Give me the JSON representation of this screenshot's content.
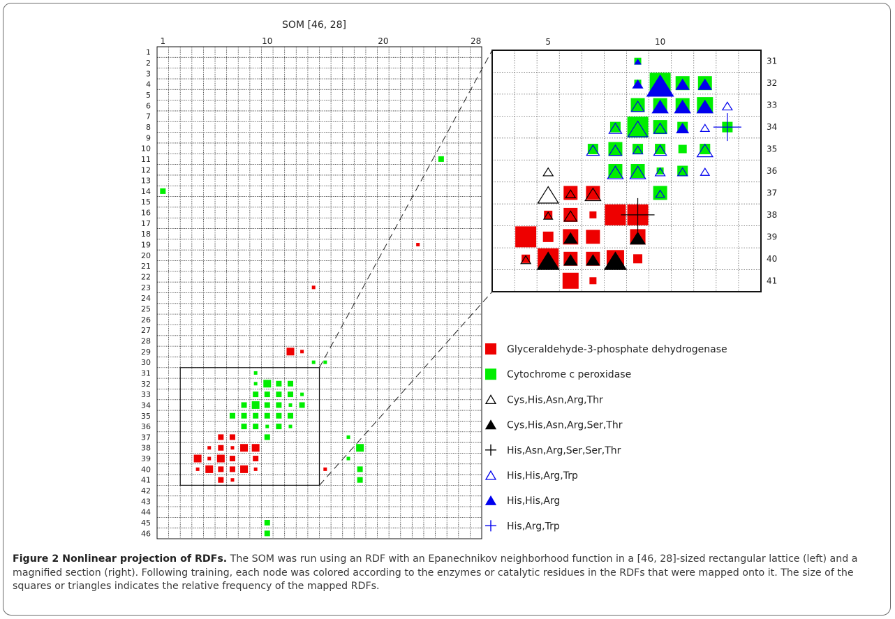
{
  "chart_data": [
    {
      "type": "scatter",
      "title": "SOM [46, 28]",
      "x_ticks": [
        "1",
        "10",
        "20",
        "28"
      ],
      "y_ticks": [
        "1",
        "2",
        "3",
        "4",
        "5",
        "6",
        "7",
        "8",
        "9",
        "10",
        "11",
        "12",
        "13",
        "14",
        "15",
        "16",
        "17",
        "18",
        "19",
        "20",
        "21",
        "22",
        "23",
        "24",
        "25",
        "26",
        "27",
        "28",
        "29",
        "30",
        "31",
        "32",
        "33",
        "34",
        "35",
        "36",
        "37",
        "38",
        "39",
        "40",
        "41",
        "42",
        "43",
        "44",
        "45",
        "46"
      ],
      "xlim": [
        1,
        28
      ],
      "ylim": [
        1,
        46
      ],
      "grid": true,
      "series": [
        {
          "name": "Glyceraldehyde-3-phosphate dehydrogenase",
          "color": "#ee0000",
          "points": [
            {
              "x": 12,
              "y": 29,
              "size": 3
            },
            {
              "x": 13,
              "y": 29,
              "size": 1
            },
            {
              "x": 14,
              "y": 23,
              "size": 1
            },
            {
              "x": 23,
              "y": 19,
              "size": 1
            },
            {
              "x": 6,
              "y": 37,
              "size": 2
            },
            {
              "x": 7,
              "y": 37,
              "size": 2
            },
            {
              "x": 5,
              "y": 38,
              "size": 1
            },
            {
              "x": 6,
              "y": 38,
              "size": 2
            },
            {
              "x": 7,
              "y": 38,
              "size": 1
            },
            {
              "x": 8,
              "y": 38,
              "size": 3
            },
            {
              "x": 9,
              "y": 38,
              "size": 3
            },
            {
              "x": 4,
              "y": 39,
              "size": 3
            },
            {
              "x": 5,
              "y": 39,
              "size": 1
            },
            {
              "x": 6,
              "y": 39,
              "size": 3
            },
            {
              "x": 7,
              "y": 39,
              "size": 2
            },
            {
              "x": 9,
              "y": 39,
              "size": 2
            },
            {
              "x": 4,
              "y": 40,
              "size": 1
            },
            {
              "x": 5,
              "y": 40,
              "size": 3
            },
            {
              "x": 6,
              "y": 40,
              "size": 2
            },
            {
              "x": 7,
              "y": 40,
              "size": 2
            },
            {
              "x": 8,
              "y": 40,
              "size": 3
            },
            {
              "x": 9,
              "y": 40,
              "size": 1
            },
            {
              "x": 15,
              "y": 40,
              "size": 1
            },
            {
              "x": 6,
              "y": 41,
              "size": 2
            },
            {
              "x": 7,
              "y": 41,
              "size": 1
            }
          ]
        },
        {
          "name": "Cytochrome c peroxidase",
          "color": "#00ee00",
          "points": [
            {
              "x": 25,
              "y": 11,
              "size": 2
            },
            {
              "x": 1,
              "y": 14,
              "size": 2
            },
            {
              "x": 14,
              "y": 30,
              "size": 1
            },
            {
              "x": 15,
              "y": 30,
              "size": 1
            },
            {
              "x": 9,
              "y": 31,
              "size": 1
            },
            {
              "x": 9,
              "y": 32,
              "size": 1
            },
            {
              "x": 10,
              "y": 32,
              "size": 3
            },
            {
              "x": 11,
              "y": 32,
              "size": 2
            },
            {
              "x": 12,
              "y": 32,
              "size": 2
            },
            {
              "x": 9,
              "y": 33,
              "size": 2
            },
            {
              "x": 10,
              "y": 33,
              "size": 2
            },
            {
              "x": 11,
              "y": 33,
              "size": 2
            },
            {
              "x": 12,
              "y": 33,
              "size": 2
            },
            {
              "x": 13,
              "y": 33,
              "size": 1
            },
            {
              "x": 8,
              "y": 34,
              "size": 2
            },
            {
              "x": 9,
              "y": 34,
              "size": 3
            },
            {
              "x": 10,
              "y": 34,
              "size": 2
            },
            {
              "x": 11,
              "y": 34,
              "size": 2
            },
            {
              "x": 12,
              "y": 34,
              "size": 1
            },
            {
              "x": 13,
              "y": 34,
              "size": 2
            },
            {
              "x": 7,
              "y": 35,
              "size": 2
            },
            {
              "x": 8,
              "y": 35,
              "size": 2
            },
            {
              "x": 9,
              "y": 35,
              "size": 2
            },
            {
              "x": 10,
              "y": 35,
              "size": 2
            },
            {
              "x": 11,
              "y": 35,
              "size": 2
            },
            {
              "x": 12,
              "y": 35,
              "size": 2
            },
            {
              "x": 8,
              "y": 36,
              "size": 2
            },
            {
              "x": 9,
              "y": 36,
              "size": 2
            },
            {
              "x": 10,
              "y": 36,
              "size": 1
            },
            {
              "x": 11,
              "y": 36,
              "size": 2
            },
            {
              "x": 12,
              "y": 36,
              "size": 1
            },
            {
              "x": 10,
              "y": 37,
              "size": 2
            },
            {
              "x": 17,
              "y": 37,
              "size": 1
            },
            {
              "x": 18,
              "y": 38,
              "size": 3
            },
            {
              "x": 17,
              "y": 39,
              "size": 1
            },
            {
              "x": 18,
              "y": 40,
              "size": 2
            },
            {
              "x": 18,
              "y": 41,
              "size": 2
            },
            {
              "x": 10,
              "y": 45,
              "size": 2
            },
            {
              "x": 10,
              "y": 46,
              "size": 2
            }
          ]
        }
      ],
      "zoom_region": {
        "x": [
          3,
          14
        ],
        "y": [
          31,
          41
        ]
      }
    },
    {
      "type": "scatter",
      "x_ticks": [
        "5",
        "10"
      ],
      "y_ticks": [
        "31",
        "32",
        "33",
        "34",
        "35",
        "36",
        "37",
        "38",
        "39",
        "40",
        "41"
      ],
      "xlim": [
        3,
        14
      ],
      "ylim": [
        31,
        41
      ],
      "grid": true,
      "squares": [
        {
          "x": 9,
          "y": 31,
          "size": 1,
          "color": "#00ee00"
        },
        {
          "x": 9,
          "y": 32,
          "size": 1,
          "color": "#00ee00"
        },
        {
          "x": 10,
          "y": 32,
          "size": 3,
          "color": "#00ee00"
        },
        {
          "x": 11,
          "y": 32,
          "size": 2,
          "color": "#00ee00"
        },
        {
          "x": 12,
          "y": 32,
          "size": 2,
          "color": "#00ee00"
        },
        {
          "x": 9,
          "y": 33,
          "size": 2,
          "color": "#00ee00"
        },
        {
          "x": 10,
          "y": 33,
          "size": 2,
          "color": "#00ee00"
        },
        {
          "x": 11,
          "y": 33,
          "size": 2,
          "color": "#00ee00"
        },
        {
          "x": 12,
          "y": 33,
          "size": 2.3,
          "color": "#00ee00"
        },
        {
          "x": 8,
          "y": 34,
          "size": 1.5,
          "color": "#00ee00"
        },
        {
          "x": 9,
          "y": 34,
          "size": 3,
          "color": "#00ee00"
        },
        {
          "x": 10,
          "y": 34,
          "size": 2,
          "color": "#00ee00"
        },
        {
          "x": 11,
          "y": 34,
          "size": 1.5,
          "color": "#00ee00"
        },
        {
          "x": 13,
          "y": 34,
          "size": 1.5,
          "color": "#00ee00"
        },
        {
          "x": 7,
          "y": 35,
          "size": 1.5,
          "color": "#00ee00"
        },
        {
          "x": 8,
          "y": 35,
          "size": 2,
          "color": "#00ee00"
        },
        {
          "x": 9,
          "y": 35,
          "size": 1.5,
          "color": "#00ee00"
        },
        {
          "x": 10,
          "y": 35,
          "size": 1.5,
          "color": "#00ee00"
        },
        {
          "x": 11,
          "y": 35,
          "size": 1.2,
          "color": "#00ee00"
        },
        {
          "x": 12,
          "y": 35,
          "size": 1.5,
          "color": "#00ee00"
        },
        {
          "x": 8,
          "y": 36,
          "size": 2,
          "color": "#00ee00"
        },
        {
          "x": 9,
          "y": 36,
          "size": 2,
          "color": "#00ee00"
        },
        {
          "x": 10,
          "y": 36,
          "size": 1,
          "color": "#00ee00"
        },
        {
          "x": 11,
          "y": 36,
          "size": 1.5,
          "color": "#00ee00"
        },
        {
          "x": 10,
          "y": 37,
          "size": 2,
          "color": "#00ee00"
        },
        {
          "x": 6,
          "y": 37,
          "size": 2,
          "color": "#ee0000"
        },
        {
          "x": 7,
          "y": 37,
          "size": 2,
          "color": "#ee0000"
        },
        {
          "x": 5,
          "y": 38,
          "size": 1.2,
          "color": "#ee0000"
        },
        {
          "x": 6,
          "y": 38,
          "size": 2,
          "color": "#ee0000"
        },
        {
          "x": 7,
          "y": 38,
          "size": 1,
          "color": "#ee0000"
        },
        {
          "x": 8,
          "y": 38,
          "size": 3,
          "color": "#ee0000"
        },
        {
          "x": 9,
          "y": 38,
          "size": 3,
          "color": "#ee0000"
        },
        {
          "x": 4,
          "y": 39,
          "size": 3,
          "color": "#ee0000"
        },
        {
          "x": 5,
          "y": 39,
          "size": 1.5,
          "color": "#ee0000"
        },
        {
          "x": 6,
          "y": 39,
          "size": 2.2,
          "color": "#ee0000"
        },
        {
          "x": 7,
          "y": 39,
          "size": 2,
          "color": "#ee0000"
        },
        {
          "x": 9,
          "y": 39,
          "size": 2.2,
          "color": "#ee0000"
        },
        {
          "x": 4,
          "y": 40,
          "size": 1.2,
          "color": "#ee0000"
        },
        {
          "x": 5,
          "y": 40,
          "size": 3,
          "color": "#ee0000"
        },
        {
          "x": 6,
          "y": 40,
          "size": 2,
          "color": "#ee0000"
        },
        {
          "x": 7,
          "y": 40,
          "size": 2,
          "color": "#ee0000"
        },
        {
          "x": 8,
          "y": 40,
          "size": 2.5,
          "color": "#ee0000"
        },
        {
          "x": 9,
          "y": 40,
          "size": 1.3,
          "color": "#ee0000"
        },
        {
          "x": 6,
          "y": 41,
          "size": 2.3,
          "color": "#ee0000"
        },
        {
          "x": 7,
          "y": 41,
          "size": 1,
          "color": "#ee0000"
        }
      ],
      "triangles": [
        {
          "x": 9,
          "y": 31,
          "size": 0.6,
          "color": "#0000ee",
          "filled": true
        },
        {
          "x": 9,
          "y": 32,
          "size": 1,
          "color": "#0000ee",
          "filled": true
        },
        {
          "x": 10,
          "y": 32,
          "size": 2.7,
          "color": "#0000ee",
          "filled": true
        },
        {
          "x": 11,
          "y": 32,
          "size": 1.3,
          "color": "#0000ee",
          "filled": true
        },
        {
          "x": 12,
          "y": 32,
          "size": 1.3,
          "color": "#0000ee",
          "filled": true
        },
        {
          "x": 9,
          "y": 33,
          "size": 1.3,
          "color": "#0000ee",
          "filled": false
        },
        {
          "x": 10,
          "y": 33,
          "size": 1.6,
          "color": "#0000ee",
          "filled": true
        },
        {
          "x": 11,
          "y": 33,
          "size": 1.6,
          "color": "#0000ee",
          "filled": true
        },
        {
          "x": 12,
          "y": 33,
          "size": 1.6,
          "color": "#0000ee",
          "filled": true
        },
        {
          "x": 13,
          "y": 33,
          "size": 1,
          "color": "#0000ee",
          "filled": false
        },
        {
          "x": 8,
          "y": 34,
          "size": 1.3,
          "color": "#0000ee",
          "filled": false
        },
        {
          "x": 9,
          "y": 34,
          "size": 2,
          "color": "#0000ee",
          "filled": false
        },
        {
          "x": 10,
          "y": 34,
          "size": 1.3,
          "color": "#0000ee",
          "filled": false
        },
        {
          "x": 11,
          "y": 34,
          "size": 1.2,
          "color": "#0000ee",
          "filled": true
        },
        {
          "x": 12,
          "y": 34,
          "size": 0.9,
          "color": "#0000ee",
          "filled": false
        },
        {
          "x": 7,
          "y": 35,
          "size": 1.3,
          "color": "#0000ee",
          "filled": false
        },
        {
          "x": 8,
          "y": 35,
          "size": 1.3,
          "color": "#0000ee",
          "filled": false
        },
        {
          "x": 9,
          "y": 35,
          "size": 1,
          "color": "#0000ee",
          "filled": false
        },
        {
          "x": 10,
          "y": 35,
          "size": 1.3,
          "color": "#0000ee",
          "filled": false
        },
        {
          "x": 12,
          "y": 35,
          "size": 1.6,
          "color": "#0000ee",
          "filled": false
        },
        {
          "x": 8,
          "y": 36,
          "size": 1.6,
          "color": "#0000ee",
          "filled": false
        },
        {
          "x": 9,
          "y": 36,
          "size": 1.6,
          "color": "#0000ee",
          "filled": false
        },
        {
          "x": 10,
          "y": 36,
          "size": 1,
          "color": "#0000ee",
          "filled": false
        },
        {
          "x": 11,
          "y": 36,
          "size": 1,
          "color": "#0000ee",
          "filled": false
        },
        {
          "x": 12,
          "y": 36,
          "size": 0.9,
          "color": "#0000ee",
          "filled": false
        },
        {
          "x": 10,
          "y": 37,
          "size": 0.9,
          "color": "#0000ee",
          "filled": false
        },
        {
          "x": 5,
          "y": 36,
          "size": 1,
          "color": "#000000",
          "filled": false
        },
        {
          "x": 5,
          "y": 37,
          "size": 2.1,
          "color": "#000000",
          "filled": false
        },
        {
          "x": 6,
          "y": 37,
          "size": 1,
          "color": "#000000",
          "filled": false
        },
        {
          "x": 7,
          "y": 37,
          "size": 1.6,
          "color": "#000000",
          "filled": false
        },
        {
          "x": 5,
          "y": 38,
          "size": 0.9,
          "color": "#000000",
          "filled": false
        },
        {
          "x": 6,
          "y": 38,
          "size": 1.3,
          "color": "#000000",
          "filled": false
        },
        {
          "x": 6,
          "y": 39,
          "size": 1.3,
          "color": "#000000",
          "filled": true
        },
        {
          "x": 9,
          "y": 39,
          "size": 1.5,
          "color": "#000000",
          "filled": true
        },
        {
          "x": 4,
          "y": 40,
          "size": 1,
          "color": "#000000",
          "filled": false
        },
        {
          "x": 5,
          "y": 40,
          "size": 2.2,
          "color": "#000000",
          "filled": true
        },
        {
          "x": 6,
          "y": 40,
          "size": 1.3,
          "color": "#000000",
          "filled": true
        },
        {
          "x": 7,
          "y": 40,
          "size": 1.3,
          "color": "#000000",
          "filled": true
        },
        {
          "x": 8,
          "y": 40,
          "size": 2.2,
          "color": "#000000",
          "filled": true
        }
      ],
      "crosses": [
        {
          "x": 13,
          "y": 34,
          "size": 2,
          "color": "#0000ee"
        },
        {
          "x": 9,
          "y": 38,
          "size": 2.4,
          "color": "#000000"
        }
      ]
    }
  ],
  "legend": [
    {
      "label": "Glyceraldehyde-3-phosphate dehydrogenase",
      "marker": "square",
      "color": "#ee0000"
    },
    {
      "label": "Cytochrome c peroxidase",
      "marker": "square",
      "color": "#00ee00"
    },
    {
      "label": "Cys,His,Asn,Arg,Thr",
      "marker": "triangle-open",
      "color": "#000000"
    },
    {
      "label": "Cys,His,Asn,Arg,Ser,Thr",
      "marker": "triangle-filled",
      "color": "#000000"
    },
    {
      "label": "His,Asn,Arg,Ser,Ser,Thr",
      "marker": "cross",
      "color": "#000000"
    },
    {
      "label": "His,His,Arg,Trp",
      "marker": "triangle-open",
      "color": "#0000ee"
    },
    {
      "label": "His,His,Arg",
      "marker": "triangle-filled",
      "color": "#0000ee"
    },
    {
      "label": "His,Arg,Trp",
      "marker": "cross",
      "color": "#0000ee"
    }
  ],
  "caption": {
    "label": "Figure 2 Nonlinear projection of RDFs.",
    "text": " The SOM was run using an RDF with an Epanechnikov neighborhood function in a [46, 28]-sized rectangular lattice (left) and a magnified section (right). Following training, each node was colored according to the enzymes or catalytic residues in the RDFs that were mapped onto it. The size of the squares or triangles indicates the relative frequency of the mapped RDFs."
  }
}
